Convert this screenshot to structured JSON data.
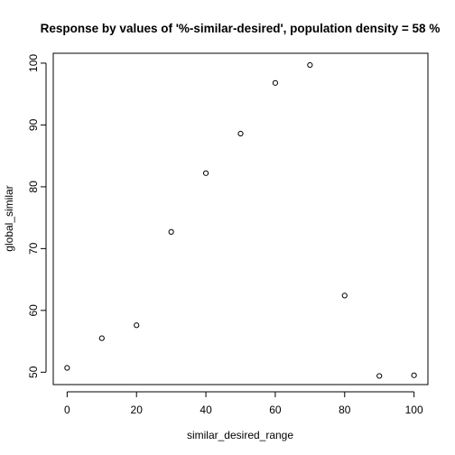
{
  "chart_data": {
    "type": "scatter",
    "title": "Response by values of '%-similar-desired', population density = 58 %",
    "xlabel": "similar_desired_range",
    "ylabel": "global_similar",
    "x": [
      0,
      10,
      20,
      30,
      40,
      50,
      60,
      70,
      80,
      90,
      100
    ],
    "y": [
      50.7,
      55.5,
      57.6,
      72.7,
      82.2,
      88.6,
      96.8,
      99.7,
      62.4,
      49.4,
      49.5
    ],
    "xlim": [
      -4,
      104
    ],
    "ylim": [
      48.0,
      101.6
    ],
    "x_ticks": [
      0,
      20,
      40,
      60,
      80,
      100
    ],
    "y_ticks": [
      50,
      60,
      70,
      80,
      90,
      100
    ],
    "x_tick_labels": [
      "0",
      "20",
      "40",
      "60",
      "80",
      "100"
    ],
    "y_tick_labels": [
      "50",
      "60",
      "70",
      "80",
      "90",
      "100"
    ],
    "grid": false,
    "marker": "open-circle"
  }
}
